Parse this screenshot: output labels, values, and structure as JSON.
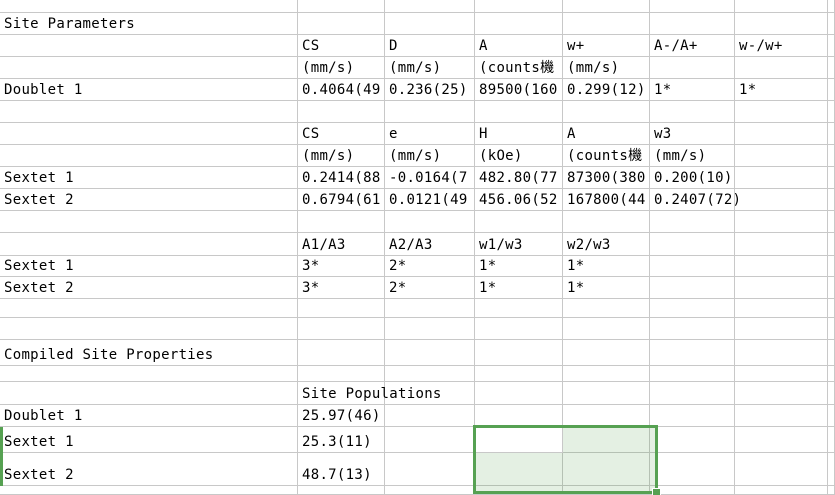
{
  "colors": {
    "sheet_bg": "#ffffff",
    "cell_text": "#000000",
    "gridline": "#c8c8c8",
    "selection_border": "#56a152",
    "selection_fill": "rgba(86,161,82,0.16)"
  },
  "sections": {
    "site_parameters_title": "Site Parameters",
    "compiled_title": "Compiled Site Properties",
    "site_populations_title": "Site Populations"
  },
  "cells": [
    {
      "r": 1,
      "c": 0,
      "t": "Site Parameters",
      "n": "section-title-site-parameters"
    },
    {
      "r": 2,
      "c": 1,
      "t": "CS",
      "n": "doublet-header-cs"
    },
    {
      "r": 2,
      "c": 2,
      "t": "D",
      "n": "doublet-header-d"
    },
    {
      "r": 2,
      "c": 3,
      "t": "A",
      "n": "doublet-header-a"
    },
    {
      "r": 2,
      "c": 4,
      "t": "w+",
      "n": "doublet-header-w-plus"
    },
    {
      "r": 2,
      "c": 5,
      "t": "A-/A+",
      "n": "doublet-header-a-minus-a-plus"
    },
    {
      "r": 2,
      "c": 6,
      "t": "w-/w+",
      "n": "doublet-header-w-minus-w-plus"
    },
    {
      "r": 3,
      "c": 1,
      "t": "(mm/s)",
      "n": "doublet-unit-cs"
    },
    {
      "r": 3,
      "c": 2,
      "t": "(mm/s)",
      "n": "doublet-unit-d"
    },
    {
      "r": 3,
      "c": 3,
      "t": "(counts機",
      "n": "doublet-unit-a"
    },
    {
      "r": 3,
      "c": 4,
      "t": "(mm/s)",
      "n": "doublet-unit-w-plus"
    },
    {
      "r": 4,
      "c": 0,
      "t": "Doublet 1",
      "n": "row-label-doublet-1"
    },
    {
      "r": 4,
      "c": 1,
      "t": "0.4064(49",
      "n": "doublet1-cs-value"
    },
    {
      "r": 4,
      "c": 2,
      "t": "0.236(25)",
      "n": "doublet1-d-value"
    },
    {
      "r": 4,
      "c": 3,
      "t": "89500(160",
      "n": "doublet1-a-value"
    },
    {
      "r": 4,
      "c": 4,
      "t": "0.299(12)",
      "n": "doublet1-w-plus-value"
    },
    {
      "r": 4,
      "c": 5,
      "t": "1*",
      "n": "doublet1-a-ratio-value"
    },
    {
      "r": 4,
      "c": 6,
      "t": "1*",
      "n": "doublet1-w-ratio-value"
    },
    {
      "r": 6,
      "c": 1,
      "t": "CS",
      "n": "sextet-header-cs"
    },
    {
      "r": 6,
      "c": 2,
      "t": "e",
      "n": "sextet-header-e"
    },
    {
      "r": 6,
      "c": 3,
      "t": "H",
      "n": "sextet-header-h"
    },
    {
      "r": 6,
      "c": 4,
      "t": "A",
      "n": "sextet-header-a"
    },
    {
      "r": 6,
      "c": 5,
      "t": "w3",
      "n": "sextet-header-w3"
    },
    {
      "r": 7,
      "c": 1,
      "t": "(mm/s)",
      "n": "sextet-unit-cs"
    },
    {
      "r": 7,
      "c": 2,
      "t": "(mm/s)",
      "n": "sextet-unit-e"
    },
    {
      "r": 7,
      "c": 3,
      "t": "(kOe)",
      "n": "sextet-unit-h"
    },
    {
      "r": 7,
      "c": 4,
      "t": "(counts機",
      "n": "sextet-unit-a"
    },
    {
      "r": 7,
      "c": 5,
      "t": "(mm/s)",
      "n": "sextet-unit-w3"
    },
    {
      "r": 8,
      "c": 0,
      "t": "Sextet 1",
      "n": "row-label-sextet-1"
    },
    {
      "r": 8,
      "c": 1,
      "t": "0.2414(88",
      "n": "sextet1-cs-value"
    },
    {
      "r": 8,
      "c": 2,
      "t": "-0.0164(7",
      "n": "sextet1-e-value"
    },
    {
      "r": 8,
      "c": 3,
      "t": "482.80(77",
      "n": "sextet1-h-value"
    },
    {
      "r": 8,
      "c": 4,
      "t": "87300(380",
      "n": "sextet1-a-value"
    },
    {
      "r": 8,
      "c": 5,
      "t": "0.200(10)",
      "n": "sextet1-w3-value",
      "ovf": true
    },
    {
      "r": 9,
      "c": 0,
      "t": "Sextet 2",
      "n": "row-label-sextet-2"
    },
    {
      "r": 9,
      "c": 1,
      "t": "0.6794(61",
      "n": "sextet2-cs-value"
    },
    {
      "r": 9,
      "c": 2,
      "t": "0.0121(49",
      "n": "sextet2-e-value"
    },
    {
      "r": 9,
      "c": 3,
      "t": "456.06(52",
      "n": "sextet2-h-value"
    },
    {
      "r": 9,
      "c": 4,
      "t": "167800(44",
      "n": "sextet2-a-value"
    },
    {
      "r": 9,
      "c": 5,
      "t": "0.2407(72)",
      "n": "sextet2-w3-value",
      "ovf": true
    },
    {
      "r": 11,
      "c": 1,
      "t": "A1/A3",
      "n": "ratio-header-a1-a3"
    },
    {
      "r": 11,
      "c": 2,
      "t": "A2/A3",
      "n": "ratio-header-a2-a3"
    },
    {
      "r": 11,
      "c": 3,
      "t": "w1/w3",
      "n": "ratio-header-w1-w3"
    },
    {
      "r": 11,
      "c": 4,
      "t": "w2/w3",
      "n": "ratio-header-w2-w3"
    },
    {
      "r": 12,
      "c": 0,
      "t": "Sextet 1",
      "n": "row-label-sextet-1-ratios"
    },
    {
      "r": 12,
      "c": 1,
      "t": "3*",
      "n": "sextet1-a1-a3-value"
    },
    {
      "r": 12,
      "c": 2,
      "t": "2*",
      "n": "sextet1-a2-a3-value"
    },
    {
      "r": 12,
      "c": 3,
      "t": "1*",
      "n": "sextet1-w1-w3-value"
    },
    {
      "r": 12,
      "c": 4,
      "t": "1*",
      "n": "sextet1-w2-w3-value"
    },
    {
      "r": 13,
      "c": 0,
      "t": "Sextet 2",
      "n": "row-label-sextet-2-ratios"
    },
    {
      "r": 13,
      "c": 1,
      "t": "3*",
      "n": "sextet2-a1-a3-value"
    },
    {
      "r": 13,
      "c": 2,
      "t": "2*",
      "n": "sextet2-a2-a3-value"
    },
    {
      "r": 13,
      "c": 3,
      "t": "1*",
      "n": "sextet2-w1-w3-value"
    },
    {
      "r": 13,
      "c": 4,
      "t": "1*",
      "n": "sextet2-w2-w3-value"
    },
    {
      "r": 16,
      "c": 0,
      "t": "Compiled Site Properties",
      "n": "section-title-compiled-site-properties"
    },
    {
      "r": 18,
      "c": 1,
      "t": "Site Populations",
      "n": "column-title-site-populations",
      "ovf": true
    },
    {
      "r": 19,
      "c": 0,
      "t": "Doublet 1",
      "n": "row-label-doublet-1-population"
    },
    {
      "r": 19,
      "c": 1,
      "t": "25.97(46)",
      "n": "doublet1-population-value"
    },
    {
      "r": 20,
      "c": 0,
      "t": "Sextet 1",
      "n": "row-label-sextet-1-population"
    },
    {
      "r": 20,
      "c": 1,
      "t": "25.3(11)",
      "n": "sextet1-population-value"
    },
    {
      "r": 21,
      "c": 0,
      "t": "Sextet 2",
      "n": "row-label-sextet-2-population"
    },
    {
      "r": 21,
      "c": 1,
      "t": "48.7(13)",
      "n": "sextet2-population-value"
    }
  ]
}
